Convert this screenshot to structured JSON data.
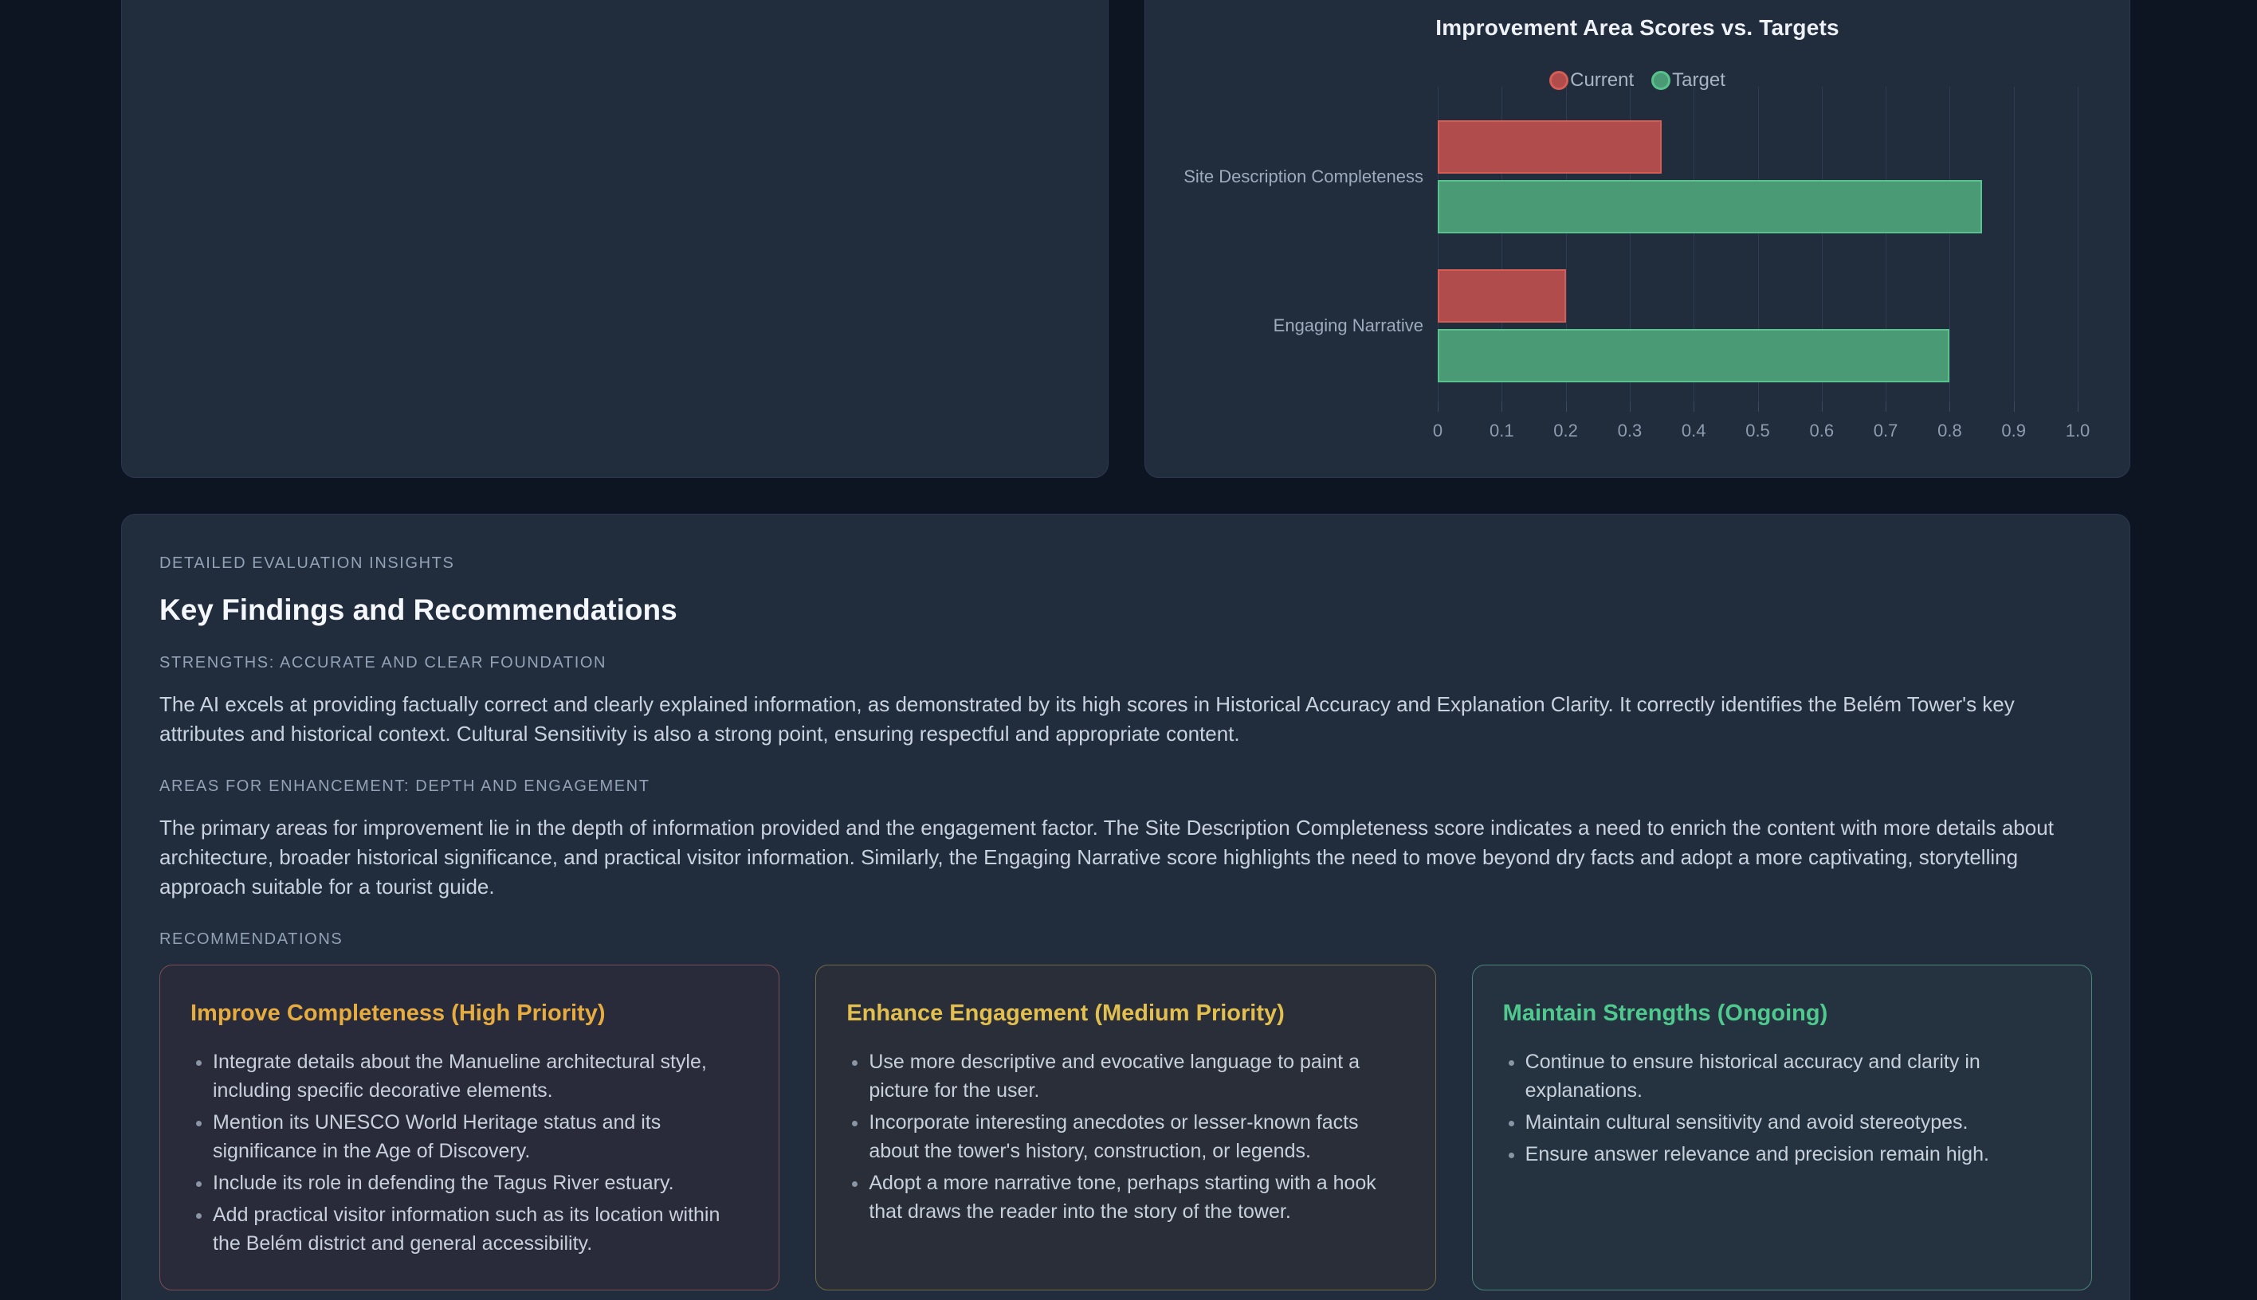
{
  "chart_data": {
    "type": "bar",
    "orientation": "horizontal",
    "title": "Improvement Area Scores vs. Targets",
    "categories": [
      "Site Description Completeness",
      "Engaging Narrative"
    ],
    "series": [
      {
        "name": "Current",
        "values": [
          0.35,
          0.2
        ],
        "fill": "#b04c4b",
        "border": "#d45d55"
      },
      {
        "name": "Target",
        "values": [
          0.85,
          0.8
        ],
        "fill": "#4b9a76",
        "border": "#57c28c"
      }
    ],
    "xlim": [
      0,
      1.0
    ],
    "xticks": [
      "0",
      "0.1",
      "0.2",
      "0.3",
      "0.4",
      "0.5",
      "0.6",
      "0.7",
      "0.8",
      "0.9",
      "1.0"
    ],
    "grid": "vertical",
    "legend_position": "top-center"
  },
  "insights": {
    "kicker": "DETAILED EVALUATION INSIGHTS",
    "title": "Key Findings and Recommendations",
    "strengths_label": "STRENGTHS: ACCURATE AND CLEAR FOUNDATION",
    "strengths_text": "The AI excels at providing factually correct and clearly explained information, as demonstrated by its high scores in Historical Accuracy and Explanation Clarity. It correctly identifies the Belém Tower's key attributes and historical context. Cultural Sensitivity is also a strong point, ensuring respectful and appropriate content.",
    "areas_label": "AREAS FOR ENHANCEMENT: DEPTH AND ENGAGEMENT",
    "areas_text": "The primary areas for improvement lie in the depth of information provided and the engagement factor. The Site Description Completeness score indicates a need to enrich the content with more details about architecture, broader historical significance, and practical visitor information. Similarly, the Engaging Narrative score highlights the need to move beyond dry facts and adopt a more captivating, storytelling approach suitable for a tourist guide.",
    "recommendations_label": "RECOMMENDATIONS",
    "cards": [
      {
        "title": "Improve Completeness (High Priority)",
        "accent": "#e6ac3f",
        "border": "#7b4e56",
        "bullets": [
          "Integrate details about the Manueline architectural style, including specific decorative elements.",
          "Mention its UNESCO World Heritage status and its significance in the Age of Discovery.",
          "Include its role in defending the Tagus River estuary.",
          "Add practical visitor information such as its location within the Belém district and general accessibility."
        ]
      },
      {
        "title": "Enhance Engagement (Medium Priority)",
        "accent": "#e2bf4e",
        "border": "#716a47",
        "bullets": [
          "Use more descriptive and evocative language to paint a picture for the user.",
          "Incorporate interesting anecdotes or lesser-known facts about the tower's history, construction, or legends.",
          "Adopt a more narrative tone, perhaps starting with a hook that draws the reader into the story of the tower."
        ]
      },
      {
        "title": "Maintain Strengths (Ongoing)",
        "accent": "#4fc98e",
        "border": "#4a8579",
        "bullets": [
          "Continue to ensure historical accuracy and clarity in explanations.",
          "Maintain cultural sensitivity and avoid stereotypes.",
          "Ensure answer relevance and precision remain high."
        ]
      }
    ]
  },
  "colors": {
    "page_background": "#0e1522",
    "card_background": "#212c3d",
    "current_bar": "#b04c4b",
    "target_bar": "#4b9a76",
    "heading_text": "#f4f7fb",
    "muted_text": "#93a2b7",
    "body_text": "#c9d3df"
  }
}
